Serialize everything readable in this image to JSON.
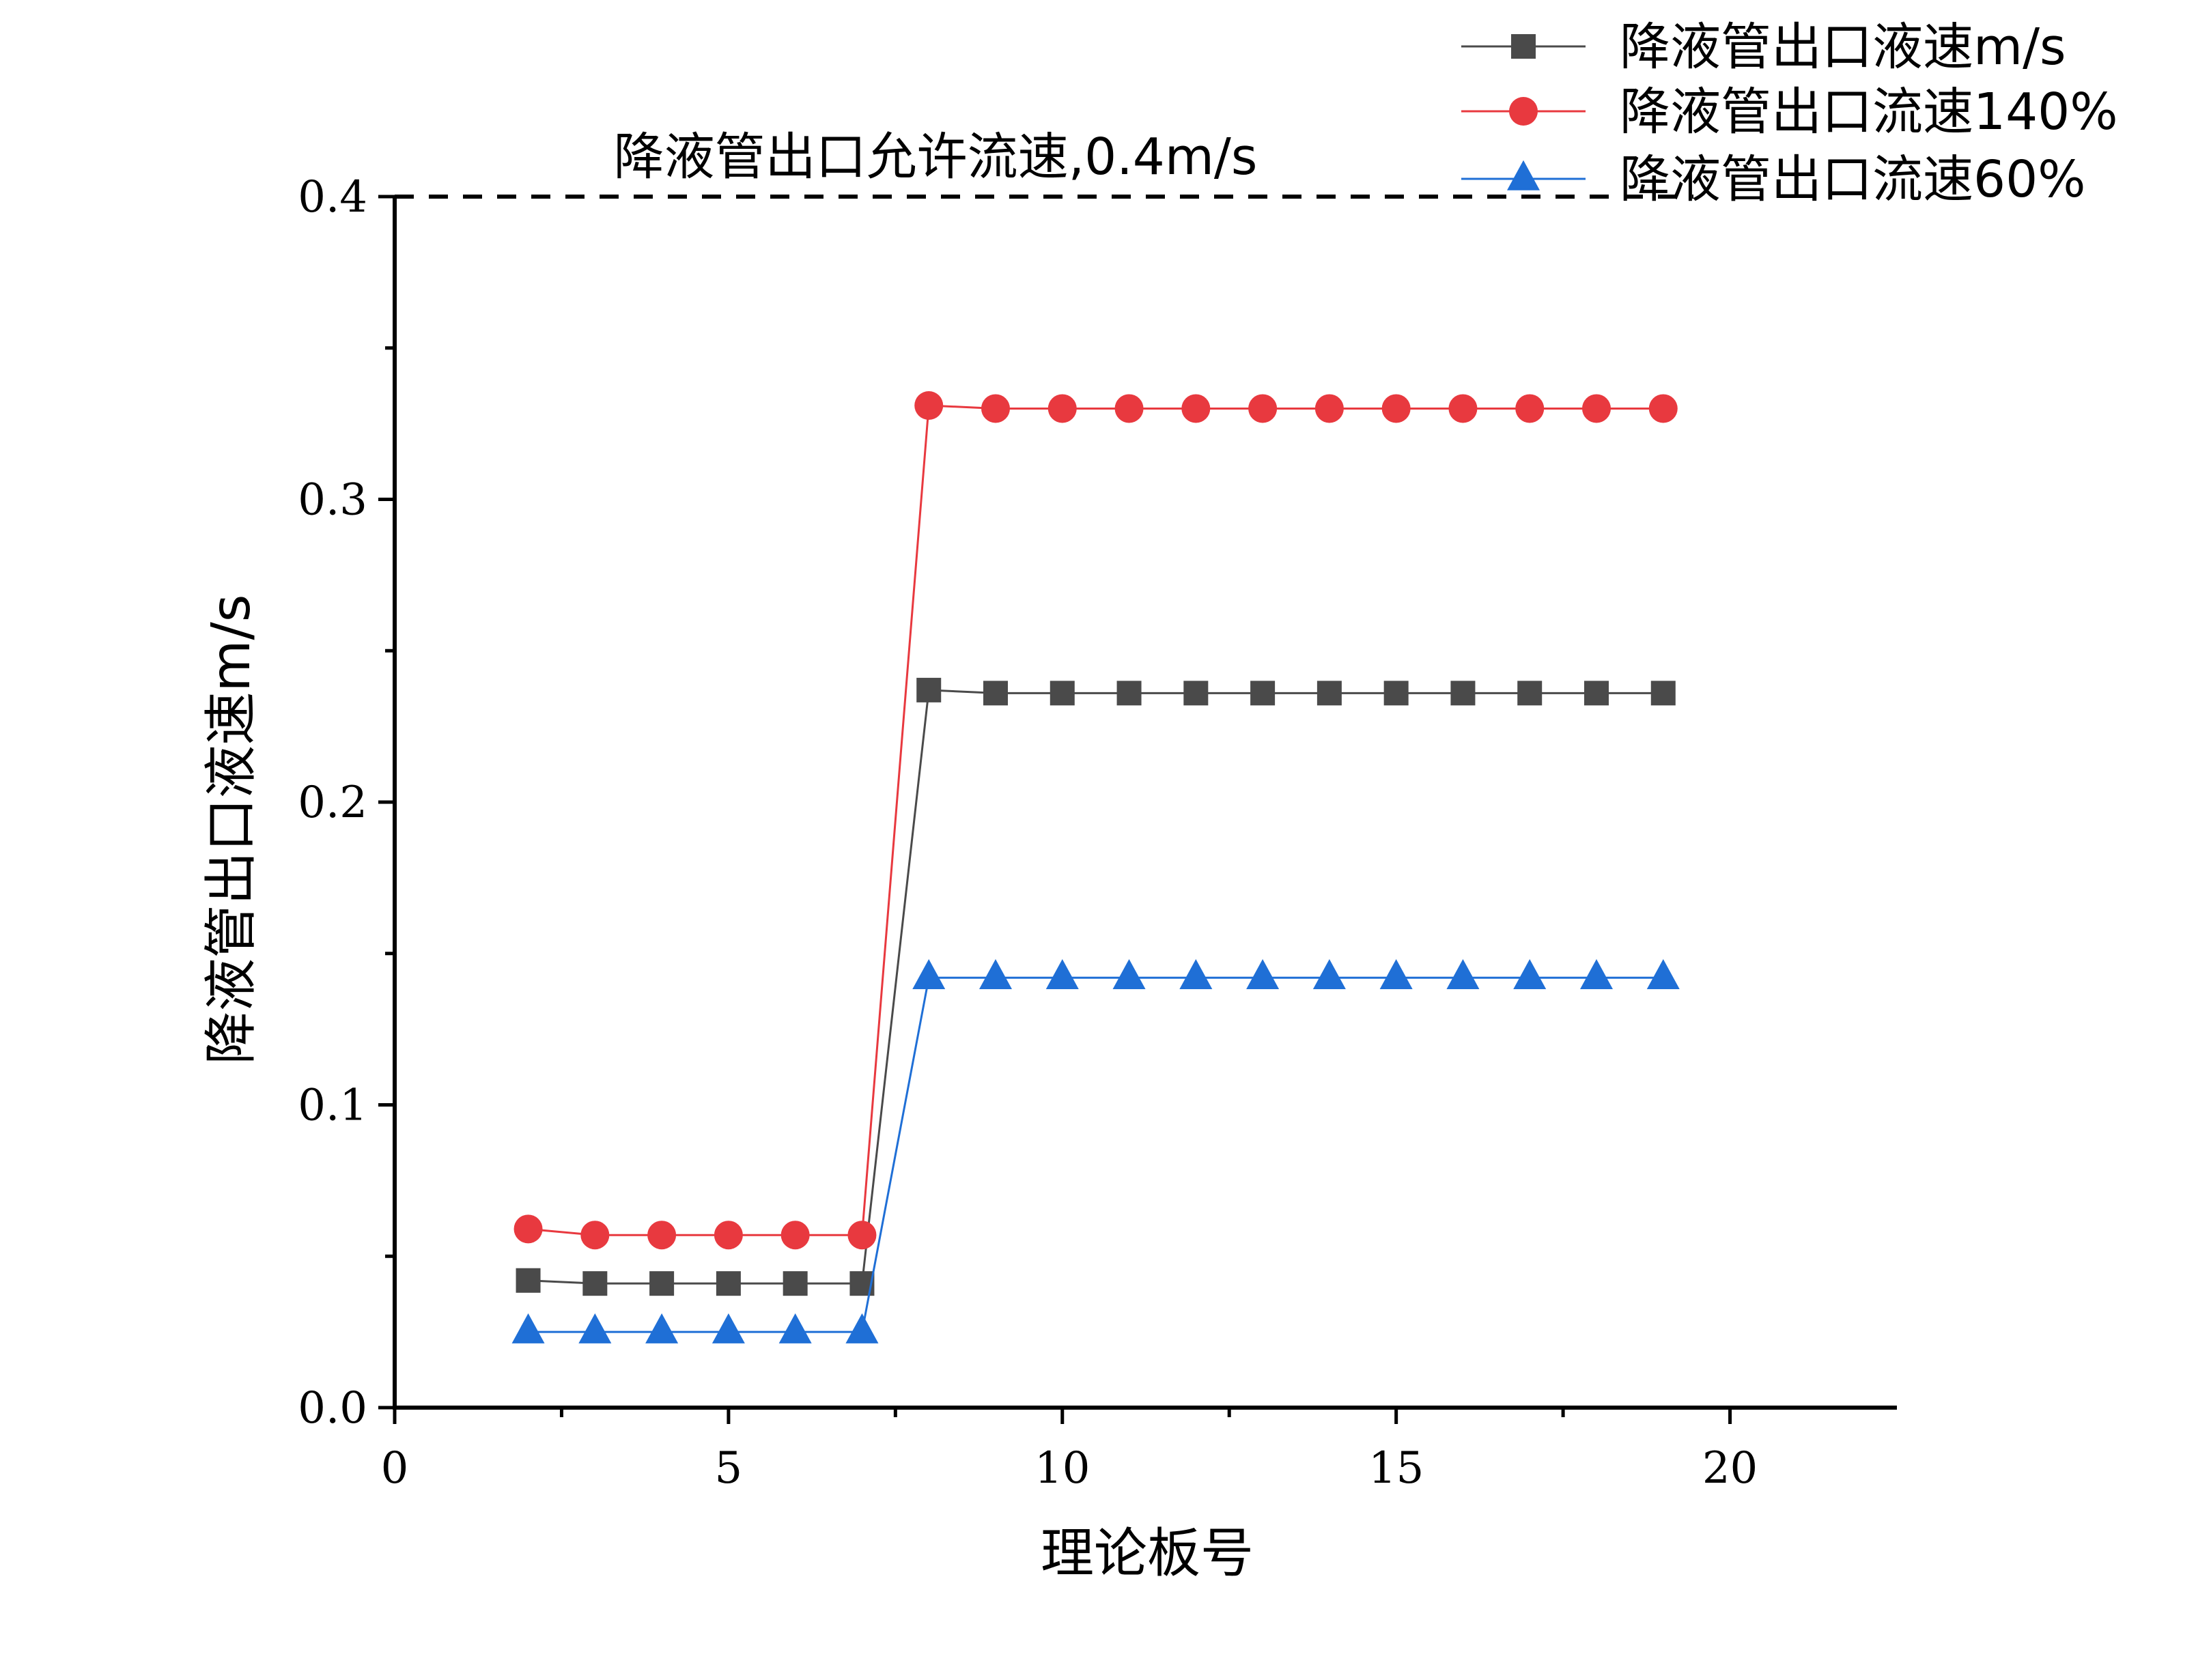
{
  "chart_data": {
    "type": "line",
    "title": "",
    "xlabel": "理论板号",
    "ylabel": "降液管出口液速m/s",
    "xlim": [
      0,
      22.5
    ],
    "ylim": [
      0,
      0.4
    ],
    "x_ticks": [
      "0",
      "5",
      "10",
      "15",
      "20"
    ],
    "y_ticks": [
      "0.0",
      "0.1",
      "0.2",
      "0.3",
      "0.4"
    ],
    "x": [
      2,
      3,
      4,
      5,
      6,
      7,
      8,
      9,
      10,
      11,
      12,
      13,
      14,
      15,
      16,
      17,
      18,
      19
    ],
    "series": [
      {
        "name": "降液管出口液速m/s",
        "color": "#4a4a4a",
        "marker": "square",
        "values": [
          0.042,
          0.041,
          0.041,
          0.041,
          0.041,
          0.041,
          0.237,
          0.236,
          0.236,
          0.236,
          0.236,
          0.236,
          0.236,
          0.236,
          0.236,
          0.236,
          0.236,
          0.236
        ]
      },
      {
        "name": "降液管出口流速140%",
        "color": "#e8393f",
        "marker": "circle",
        "values": [
          0.059,
          0.057,
          0.057,
          0.057,
          0.057,
          0.057,
          0.331,
          0.33,
          0.33,
          0.33,
          0.33,
          0.33,
          0.33,
          0.33,
          0.33,
          0.33,
          0.33,
          0.33
        ]
      },
      {
        "name": "降液管出口流速60%",
        "color": "#1f6fd6",
        "marker": "triangle",
        "values": [
          0.025,
          0.025,
          0.025,
          0.025,
          0.025,
          0.025,
          0.142,
          0.142,
          0.142,
          0.142,
          0.142,
          0.142,
          0.142,
          0.142,
          0.142,
          0.142,
          0.142,
          0.142
        ]
      }
    ],
    "reference_line": {
      "y": 0.4,
      "style": "dashed",
      "color": "#000000",
      "label": "降液管出口允许流速,0.4m/s"
    },
    "legend_position": "top-right",
    "grid": false
  }
}
